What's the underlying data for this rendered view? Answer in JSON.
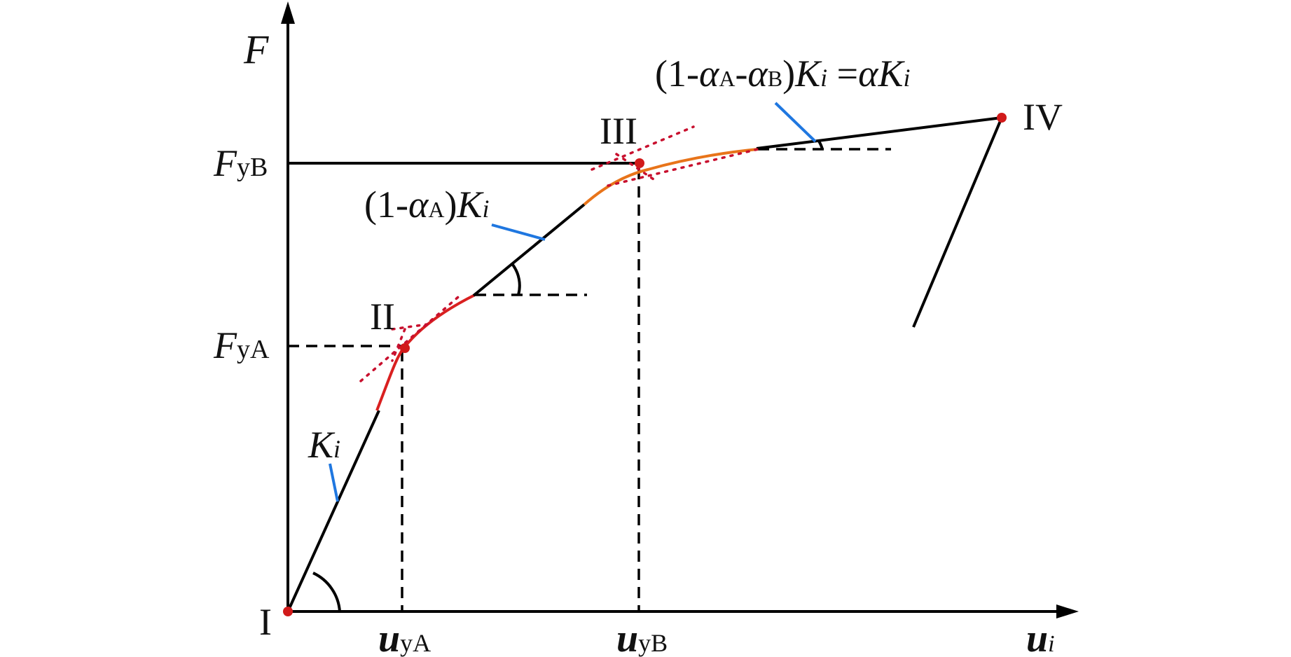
{
  "diagram": {
    "axis_labels": {
      "y": "F",
      "x": "u",
      "x_sub": "i"
    },
    "tick_labels": {
      "fyb_main": "F",
      "fyb_sub": "yB",
      "fya_main": "F",
      "fya_sub": "yA",
      "uya_main": "u",
      "uya_sub": "yA",
      "uyb_main": "u",
      "uyb_sub": "yB"
    },
    "points": {
      "p1": "I",
      "p2": "II",
      "p3": "III",
      "p4": "IV"
    },
    "stiffness_labels": {
      "k1_main": "K",
      "k1_sub": "i",
      "k2_prefix": "(1-",
      "k2_alpha": "α",
      "k2_alpha_sub": "A",
      "k2_close": ")",
      "k2_K": "K",
      "k2_K_sub": "i",
      "k3_prefix": "(1-",
      "k3_alpha1": "α",
      "k3_alpha1_sub": "A",
      "k3_dash": "-",
      "k3_alpha2": "α",
      "k3_alpha2_sub": "B",
      "k3_close": ")",
      "k3_K": "K",
      "k3_K_sub": "i",
      "k3_eq": " =",
      "k3_alpha3": "α",
      "k3_K2": "K",
      "k3_K2_sub": "i"
    },
    "colors": {
      "axis": "#000000",
      "curve": "#e8741a",
      "tangent_dots": "#c8102e",
      "leader": "#1f77e0",
      "point": "#d11a1a"
    }
  }
}
